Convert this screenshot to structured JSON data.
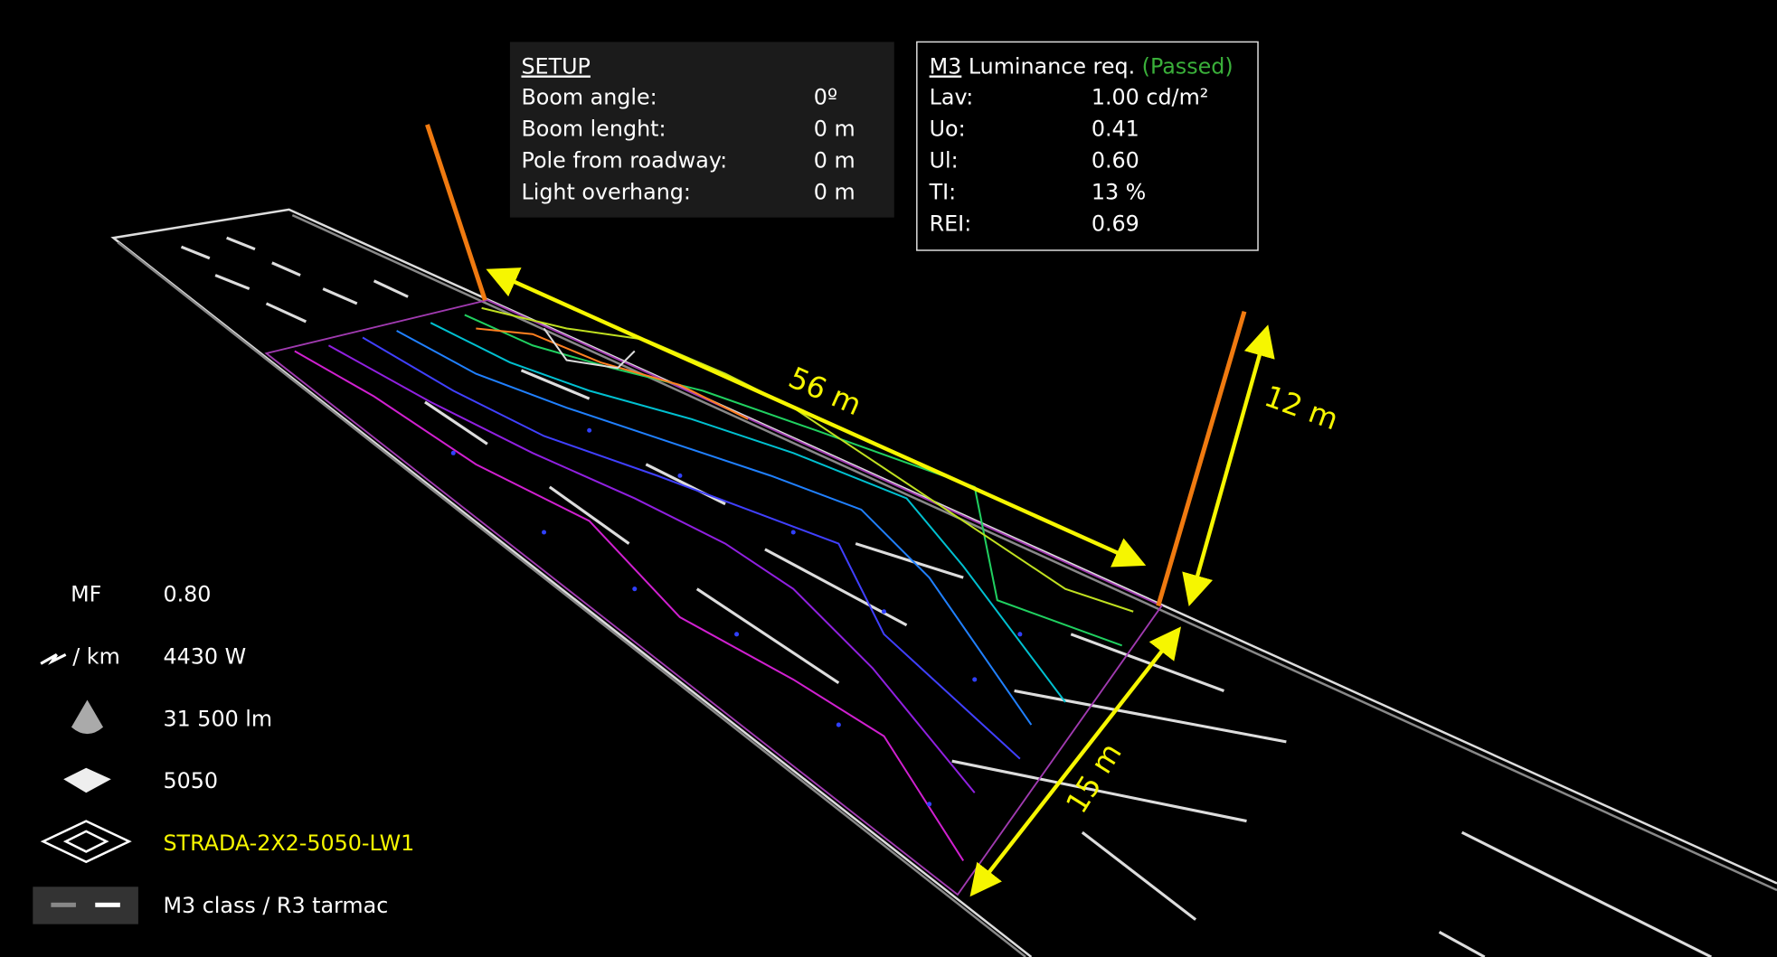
{
  "setup": {
    "title": "SETUP",
    "rows": [
      [
        "Boom angle:",
        "0º"
      ],
      [
        "Boom lenght:",
        "0 m"
      ],
      [
        "Pole from roadway:",
        "0 m"
      ],
      [
        "Light overhang:",
        "0 m"
      ]
    ]
  },
  "luminance": {
    "class": "M3",
    "title": "Luminance req.",
    "status": "(Passed)",
    "rows": [
      [
        "Lav:",
        "1.00 cd/m²"
      ],
      [
        "Uo:",
        "0.41"
      ],
      [
        "Ul:",
        "0.60"
      ],
      [
        "TI:",
        "13 %"
      ],
      [
        "REI:",
        "0.69"
      ]
    ]
  },
  "dimensions": {
    "length": "56 m",
    "height": "12 m",
    "width": "15 m"
  },
  "legend": [
    {
      "label": "MF",
      "value": "0.80"
    },
    {
      "label": "/ km",
      "value": "4430 W"
    },
    {
      "value": "31 500 lm"
    },
    {
      "value": "5050"
    },
    {
      "value": "STRADA-2X2-5050-LW1"
    },
    {
      "value": "M3 class  / R3 tarmac"
    }
  ]
}
